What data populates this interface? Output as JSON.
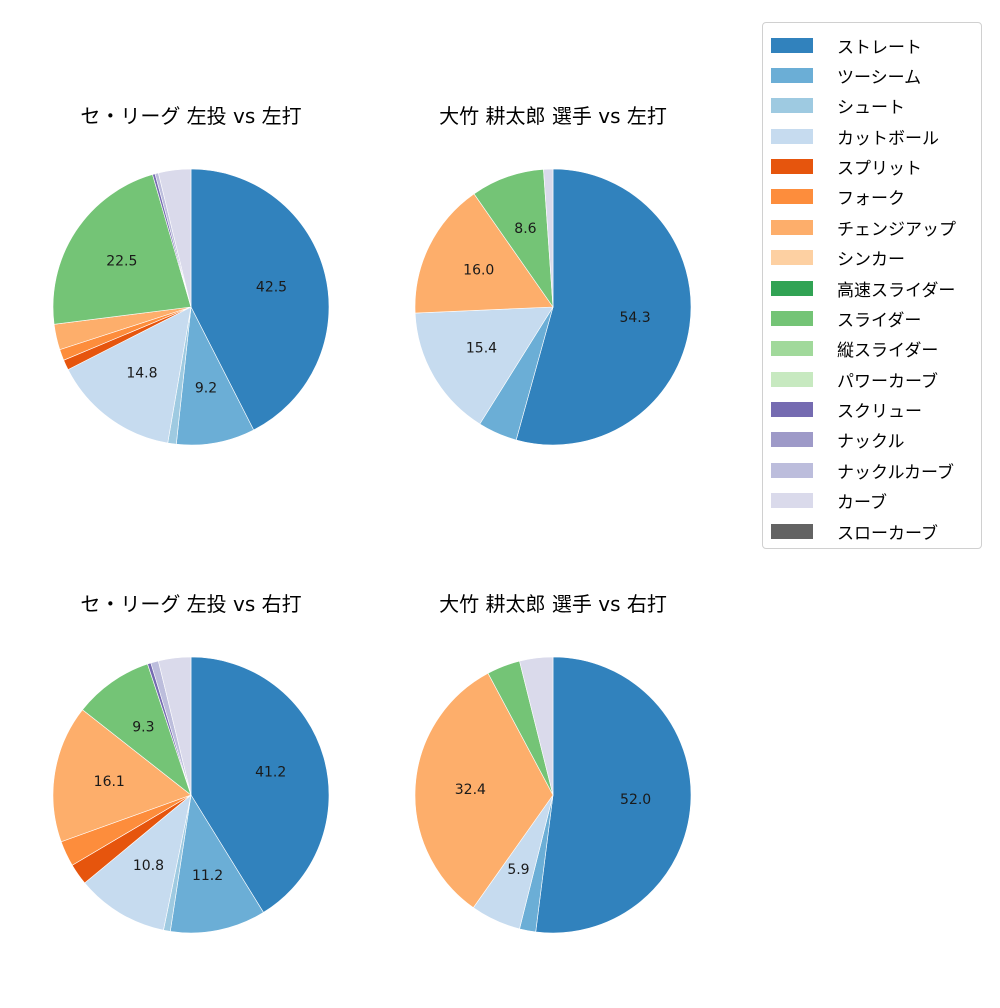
{
  "legend": {
    "items": [
      {
        "label": "ストレート",
        "color": "#3182bd"
      },
      {
        "label": "ツーシーム",
        "color": "#6baed6"
      },
      {
        "label": "シュート",
        "color": "#9ecae1"
      },
      {
        "label": "カットボール",
        "color": "#c6dbef"
      },
      {
        "label": "スプリット",
        "color": "#e6550d"
      },
      {
        "label": "フォーク",
        "color": "#fd8d3c"
      },
      {
        "label": "チェンジアップ",
        "color": "#fdae6b"
      },
      {
        "label": "シンカー",
        "color": "#fdd0a2"
      },
      {
        "label": "高速スライダー",
        "color": "#31a354"
      },
      {
        "label": "スライダー",
        "color": "#74c476"
      },
      {
        "label": "縦スライダー",
        "color": "#a1d99b"
      },
      {
        "label": "パワーカーブ",
        "color": "#c7e9c0"
      },
      {
        "label": "スクリュー",
        "color": "#756bb1"
      },
      {
        "label": "ナックル",
        "color": "#9e9ac8"
      },
      {
        "label": "ナックルカーブ",
        "color": "#bcbddc"
      },
      {
        "label": "カーブ",
        "color": "#dadaeb"
      },
      {
        "label": "スローカーブ",
        "color": "#636363"
      }
    ]
  },
  "chart_data": [
    {
      "type": "pie",
      "title": "セ・リーグ 左投 vs 左打",
      "start_angle": 90,
      "direction": "clockwise",
      "label_threshold": 5,
      "slices": [
        {
          "label": "ストレート",
          "value": 42.5
        },
        {
          "label": "ツーシーム",
          "value": 9.2
        },
        {
          "label": "シュート",
          "value": 1.0
        },
        {
          "label": "カットボール",
          "value": 14.8
        },
        {
          "label": "スプリット",
          "value": 1.2
        },
        {
          "label": "フォーク",
          "value": 1.3
        },
        {
          "label": "チェンジアップ",
          "value": 3.0
        },
        {
          "label": "スライダー",
          "value": 22.5
        },
        {
          "label": "スクリュー",
          "value": 0.3
        },
        {
          "label": "ナックルカーブ",
          "value": 0.4
        },
        {
          "label": "カーブ",
          "value": 3.8
        }
      ]
    },
    {
      "type": "pie",
      "title": "大竹 耕太郎 選手 vs 左打",
      "start_angle": 90,
      "direction": "clockwise",
      "label_threshold": 5,
      "slices": [
        {
          "label": "ストレート",
          "value": 54.3
        },
        {
          "label": "ツーシーム",
          "value": 4.6
        },
        {
          "label": "カットボール",
          "value": 15.4
        },
        {
          "label": "チェンジアップ",
          "value": 16.0
        },
        {
          "label": "スライダー",
          "value": 8.6
        },
        {
          "label": "カーブ",
          "value": 1.1
        }
      ]
    },
    {
      "type": "pie",
      "title": "セ・リーグ 左投 vs 右打",
      "start_angle": 90,
      "direction": "clockwise",
      "label_threshold": 5,
      "slices": [
        {
          "label": "ストレート",
          "value": 41.2
        },
        {
          "label": "ツーシーム",
          "value": 11.2
        },
        {
          "label": "シュート",
          "value": 0.8
        },
        {
          "label": "カットボール",
          "value": 10.8
        },
        {
          "label": "スプリット",
          "value": 2.5
        },
        {
          "label": "フォーク",
          "value": 3.0
        },
        {
          "label": "チェンジアップ",
          "value": 16.1
        },
        {
          "label": "スライダー",
          "value": 9.3
        },
        {
          "label": "スクリュー",
          "value": 0.4
        },
        {
          "label": "ナックルカーブ",
          "value": 0.9
        },
        {
          "label": "カーブ",
          "value": 3.8
        }
      ]
    },
    {
      "type": "pie",
      "title": "大竹 耕太郎 選手 vs 右打",
      "start_angle": 90,
      "direction": "clockwise",
      "label_threshold": 5,
      "slices": [
        {
          "label": "ストレート",
          "value": 52.0
        },
        {
          "label": "ツーシーム",
          "value": 1.9
        },
        {
          "label": "カットボール",
          "value": 5.9
        },
        {
          "label": "チェンジアップ",
          "value": 32.4
        },
        {
          "label": "スライダー",
          "value": 3.9
        },
        {
          "label": "カーブ",
          "value": 3.9
        }
      ]
    }
  ]
}
